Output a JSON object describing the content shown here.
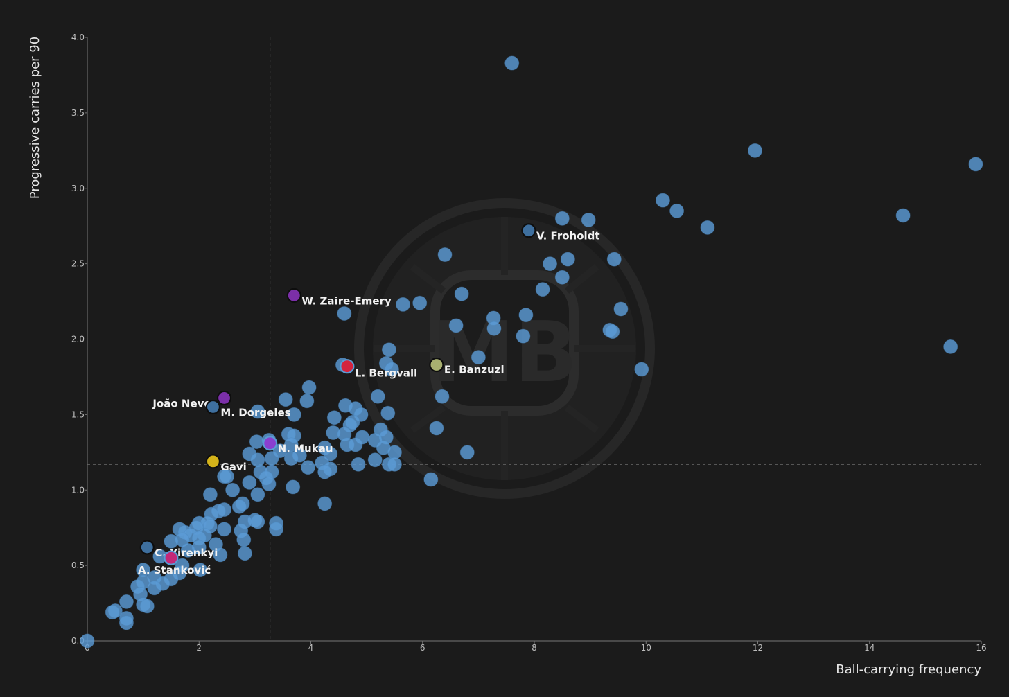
{
  "chart_data": {
    "type": "scatter",
    "xlabel": "Ball-carrying frequency",
    "ylabel": "Progressive carries per 90",
    "xlim": [
      0,
      16
    ],
    "ylim": [
      0,
      4
    ],
    "xticks": [
      "0",
      "2",
      "4",
      "6",
      "8",
      "10",
      "12",
      "14",
      "16"
    ],
    "yticks": [
      "0.0",
      "0.5",
      "1.0",
      "1.5",
      "2.0",
      "2.5",
      "3.0",
      "3.5",
      "4.0"
    ],
    "reference_lines": {
      "x": 3.27,
      "y": 1.17
    },
    "grid": false,
    "watermark": "MB",
    "colors": {
      "background": "#1b1b1b",
      "points": "#5b9bd5",
      "axis": "#777777",
      "reference": "#6a6a6a"
    },
    "points": [
      [
        7.6,
        3.83
      ],
      [
        11.95,
        3.25
      ],
      [
        15.9,
        3.16
      ],
      [
        14.6,
        2.82
      ],
      [
        10.3,
        2.92
      ],
      [
        10.55,
        2.85
      ],
      [
        11.1,
        2.74
      ],
      [
        8.5,
        2.8
      ],
      [
        8.97,
        2.79
      ],
      [
        15.45,
        1.95
      ],
      [
        6.4,
        2.56
      ],
      [
        8.6,
        2.53
      ],
      [
        8.28,
        2.5
      ],
      [
        9.43,
        2.53
      ],
      [
        8.5,
        2.41
      ],
      [
        8.15,
        2.33
      ],
      [
        6.7,
        2.3
      ],
      [
        9.55,
        2.2
      ],
      [
        5.65,
        2.23
      ],
      [
        5.95,
        2.24
      ],
      [
        4.6,
        2.17
      ],
      [
        7.85,
        2.16
      ],
      [
        7.27,
        2.14
      ],
      [
        6.6,
        2.09
      ],
      [
        7.28,
        2.07
      ],
      [
        9.35,
        2.06
      ],
      [
        9.4,
        2.05
      ],
      [
        7.8,
        2.02
      ],
      [
        5.4,
        1.93
      ],
      [
        9.92,
        1.8
      ],
      [
        7.0,
        1.88
      ],
      [
        5.35,
        1.84
      ],
      [
        5.45,
        1.8
      ],
      [
        4.57,
        1.83
      ],
      [
        3.97,
        1.68
      ],
      [
        6.35,
        1.62
      ],
      [
        5.2,
        1.62
      ],
      [
        3.55,
        1.6
      ],
      [
        3.93,
        1.59
      ],
      [
        4.62,
        1.56
      ],
      [
        4.8,
        1.54
      ],
      [
        3.05,
        1.52
      ],
      [
        3.7,
        1.5
      ],
      [
        5.38,
        1.51
      ],
      [
        4.42,
        1.48
      ],
      [
        4.9,
        1.5
      ],
      [
        4.75,
        1.45
      ],
      [
        4.7,
        1.43
      ],
      [
        5.25,
        1.4
      ],
      [
        4.4,
        1.38
      ],
      [
        3.6,
        1.37
      ],
      [
        3.7,
        1.36
      ],
      [
        4.6,
        1.37
      ],
      [
        6.25,
        1.41
      ],
      [
        4.92,
        1.35
      ],
      [
        5.35,
        1.35
      ],
      [
        3.25,
        1.33
      ],
      [
        3.03,
        1.32
      ],
      [
        5.15,
        1.33
      ],
      [
        4.65,
        1.3
      ],
      [
        4.8,
        1.3
      ],
      [
        3.65,
        1.3
      ],
      [
        5.3,
        1.28
      ],
      [
        4.25,
        1.28
      ],
      [
        2.9,
        1.24
      ],
      [
        3.45,
        1.26
      ],
      [
        3.8,
        1.23
      ],
      [
        4.35,
        1.24
      ],
      [
        5.5,
        1.25
      ],
      [
        6.8,
        1.25
      ],
      [
        3.3,
        1.21
      ],
      [
        3.65,
        1.21
      ],
      [
        3.05,
        1.2
      ],
      [
        5.15,
        1.2
      ],
      [
        4.2,
        1.18
      ],
      [
        4.85,
        1.17
      ],
      [
        5.4,
        1.17
      ],
      [
        5.5,
        1.17
      ],
      [
        3.95,
        1.15
      ],
      [
        4.35,
        1.14
      ],
      [
        3.1,
        1.12
      ],
      [
        3.3,
        1.12
      ],
      [
        4.25,
        1.12
      ],
      [
        2.5,
        1.09
      ],
      [
        2.45,
        1.09
      ],
      [
        3.2,
        1.08
      ],
      [
        6.15,
        1.07
      ],
      [
        2.9,
        1.05
      ],
      [
        3.25,
        1.04
      ],
      [
        3.68,
        1.02
      ],
      [
        2.6,
        1.0
      ],
      [
        2.2,
        0.97
      ],
      [
        3.05,
        0.97
      ],
      [
        4.25,
        0.91
      ],
      [
        2.78,
        0.91
      ],
      [
        2.72,
        0.89
      ],
      [
        2.45,
        0.87
      ],
      [
        2.35,
        0.86
      ],
      [
        2.22,
        0.84
      ],
      [
        3.0,
        0.8
      ],
      [
        3.05,
        0.79
      ],
      [
        2.82,
        0.79
      ],
      [
        3.38,
        0.78
      ],
      [
        2.0,
        0.78
      ],
      [
        2.15,
        0.78
      ],
      [
        2.2,
        0.76
      ],
      [
        1.95,
        0.75
      ],
      [
        1.65,
        0.74
      ],
      [
        2.45,
        0.74
      ],
      [
        2.75,
        0.73
      ],
      [
        3.38,
        0.74
      ],
      [
        1.75,
        0.72
      ],
      [
        1.85,
        0.7
      ],
      [
        2.1,
        0.7
      ],
      [
        2.0,
        0.68
      ],
      [
        1.7,
        0.67
      ],
      [
        2.8,
        0.67
      ],
      [
        1.5,
        0.66
      ],
      [
        2.3,
        0.64
      ],
      [
        2.0,
        0.62
      ],
      [
        1.8,
        0.6
      ],
      [
        2.38,
        0.57
      ],
      [
        2.82,
        0.58
      ],
      [
        1.3,
        0.56
      ],
      [
        1.7,
        0.5
      ],
      [
        1.0,
        0.47
      ],
      [
        1.65,
        0.45
      ],
      [
        2.02,
        0.47
      ],
      [
        1.2,
        0.42
      ],
      [
        1.5,
        0.41
      ],
      [
        1.0,
        0.39
      ],
      [
        1.35,
        0.38
      ],
      [
        0.9,
        0.36
      ],
      [
        1.2,
        0.35
      ],
      [
        0.95,
        0.31
      ],
      [
        0.7,
        0.26
      ],
      [
        1.0,
        0.24
      ],
      [
        1.07,
        0.23
      ],
      [
        0.5,
        0.2
      ],
      [
        0.45,
        0.19
      ],
      [
        0.7,
        0.15
      ],
      [
        0.7,
        0.12
      ],
      [
        0.0,
        0.0
      ]
    ],
    "labeled_points": [
      {
        "name": "V. Froholdt",
        "x": 7.9,
        "y": 2.72,
        "color": "#3e6f9e",
        "ring": "#0e0e0e",
        "dx": 11,
        "dy": 13,
        "anchor": "start"
      },
      {
        "name": "W. Zaire-Emery",
        "x": 3.7,
        "y": 2.29,
        "color": "#7b2fa8",
        "ring": "#0e0e0e",
        "dx": 11,
        "dy": 13,
        "anchor": "start"
      },
      {
        "name": "L. Bergvall",
        "x": 4.65,
        "y": 1.82,
        "color": "#d5233e",
        "ring": "#5b9bd5",
        "dx": 11,
        "dy": 15,
        "anchor": "start"
      },
      {
        "name": "E. Banzuzi",
        "x": 6.25,
        "y": 1.83,
        "color": "#a8b070",
        "ring": "#0e0e0e",
        "dx": 11,
        "dy": 12,
        "anchor": "start"
      },
      {
        "name": "João Neves",
        "x": 2.45,
        "y": 1.61,
        "color": "#7b2fa8",
        "ring": "#0e0e0e",
        "dx": -10,
        "dy": 13,
        "anchor": "end"
      },
      {
        "name": "M. Dorgeles",
        "x": 2.25,
        "y": 1.55,
        "color": "#3e6f9e",
        "ring": "#0e0e0e",
        "dx": 11,
        "dy": 13,
        "anchor": "start"
      },
      {
        "name": "N. Mukau",
        "x": 3.27,
        "y": 1.31,
        "color": "#8a3fd0",
        "ring": "#5b9bd5",
        "dx": 11,
        "dy": 13,
        "anchor": "start"
      },
      {
        "name": "Gavi",
        "x": 2.25,
        "y": 1.19,
        "color": "#d4b31a",
        "ring": "#0e0e0e",
        "dx": 11,
        "dy": 13,
        "anchor": "start"
      },
      {
        "name": "C. Yirenkyi",
        "x": 1.07,
        "y": 0.62,
        "color": "#3e6f9e",
        "ring": "#0e0e0e",
        "dx": 11,
        "dy": 13,
        "anchor": "start"
      },
      {
        "name": "A. Stanković",
        "x": 1.5,
        "y": 0.55,
        "color": "#c42878",
        "ring": "#5b9bd5",
        "dx": -48,
        "dy": 23,
        "anchor": "start"
      }
    ]
  }
}
